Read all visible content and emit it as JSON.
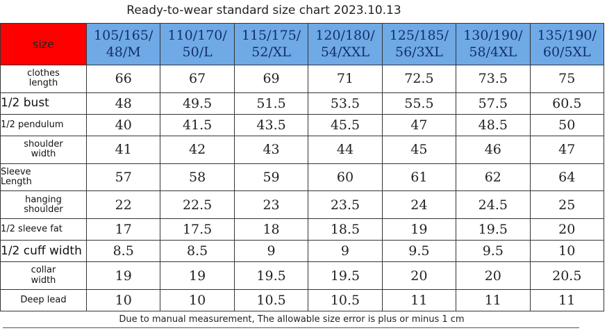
{
  "title": "Ready-to-wear standard size chart 2023.10.13",
  "corner_label": "size",
  "sizes": [
    "105/165/\n48/M",
    "110/170/\n50/L",
    "115/175/\n52/XL",
    "120/180/\n54/XXL",
    "125/185/\n56/3XL",
    "130/190/\n58/4XL",
    "135/190/\n60/5XL"
  ],
  "rows": [
    {
      "label": "clothes\nlength",
      "align": "center",
      "big": false,
      "values": [
        "66",
        "67",
        "69",
        "71",
        "72.5",
        "73.5",
        "75"
      ]
    },
    {
      "label": "1/2 bust",
      "align": "left",
      "big": true,
      "values": [
        "48",
        "49.5",
        "51.5",
        "53.5",
        "55.5",
        "57.5",
        "60.5"
      ]
    },
    {
      "label": "1/2 pendulum",
      "align": "left",
      "big": false,
      "values": [
        "40",
        "41.5",
        "43.5",
        "45.5",
        "47",
        "48.5",
        "50"
      ]
    },
    {
      "label": "shoulder\nwidth",
      "align": "center",
      "big": false,
      "values": [
        "41",
        "42",
        "43",
        "44",
        "45",
        "46",
        "47"
      ]
    },
    {
      "label": "Sleeve\nLength",
      "align": "left",
      "big": false,
      "values": [
        "57",
        "58",
        "59",
        "60",
        "61",
        "62",
        "64"
      ]
    },
    {
      "label": "hanging\nshoulder",
      "align": "center",
      "big": false,
      "values": [
        "22",
        "22.5",
        "23",
        "23.5",
        "24",
        "24.5",
        "25"
      ]
    },
    {
      "label": "1/2 sleeve fat",
      "align": "left",
      "big": false,
      "values": [
        "17",
        "17.5",
        "18",
        "18.5",
        "19",
        "19.5",
        "20"
      ]
    },
    {
      "label": "1/2 cuff width",
      "align": "left",
      "big": true,
      "values": [
        "8.5",
        "8.5",
        "9",
        "9",
        "9.5",
        "9.5",
        "10"
      ]
    },
    {
      "label": "collar\nwidth",
      "align": "center",
      "big": false,
      "values": [
        "19",
        "19",
        "19.5",
        "19.5",
        "20",
        "20",
        "20.5"
      ]
    },
    {
      "label": "Deep lead",
      "align": "center",
      "big": false,
      "values": [
        "10",
        "10",
        "10.5",
        "10.5",
        "11",
        "11",
        "11"
      ]
    }
  ],
  "note": "Due to manual measurement, The allowable size error is plus or minus 1 cm",
  "colors": {
    "header_red": "#ff0000",
    "header_blue": "#6fa9e6"
  }
}
